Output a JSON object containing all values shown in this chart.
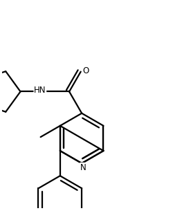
{
  "bg": "#ffffff",
  "lc": "#000000",
  "lw": 1.6,
  "fig_w": 2.5,
  "fig_h": 3.08,
  "dpi": 100,
  "xlim": [
    -0.15,
    1.1
  ],
  "ylim": [
    -0.85,
    0.65
  ]
}
